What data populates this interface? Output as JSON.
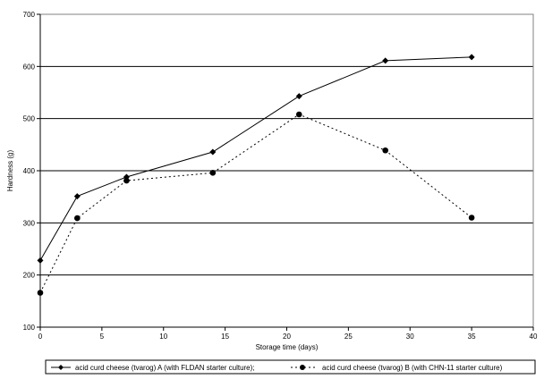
{
  "chart_data": {
    "type": "line",
    "title": "",
    "xlabel": "Storage time (days)",
    "ylabel": "Hardness (g)",
    "xlim": [
      0,
      40
    ],
    "ylim": [
      100,
      700
    ],
    "xticks": [
      0,
      5,
      10,
      15,
      20,
      25,
      30,
      35,
      40
    ],
    "yticks": [
      100,
      200,
      300,
      400,
      500,
      600,
      700
    ],
    "grid": "horizontal",
    "legend_position": "bottom",
    "series": [
      {
        "name": "acid curd cheese (tvarog) A (with FLDAN starter culture);",
        "x": [
          0,
          3,
          7,
          14,
          21,
          28,
          35
        ],
        "y": [
          228,
          351,
          388,
          436,
          543,
          611,
          618
        ],
        "style": "solid",
        "marker": "diamond",
        "color": "#000000"
      },
      {
        "name": "acid curd cheese (tvarog) B (with CHN-11 starter culture)",
        "x": [
          0,
          3,
          7,
          14,
          21,
          28,
          35
        ],
        "y": [
          166,
          309,
          381,
          396,
          508,
          439,
          310
        ],
        "style": "dotted",
        "marker": "circle",
        "color": "#000000"
      }
    ]
  }
}
